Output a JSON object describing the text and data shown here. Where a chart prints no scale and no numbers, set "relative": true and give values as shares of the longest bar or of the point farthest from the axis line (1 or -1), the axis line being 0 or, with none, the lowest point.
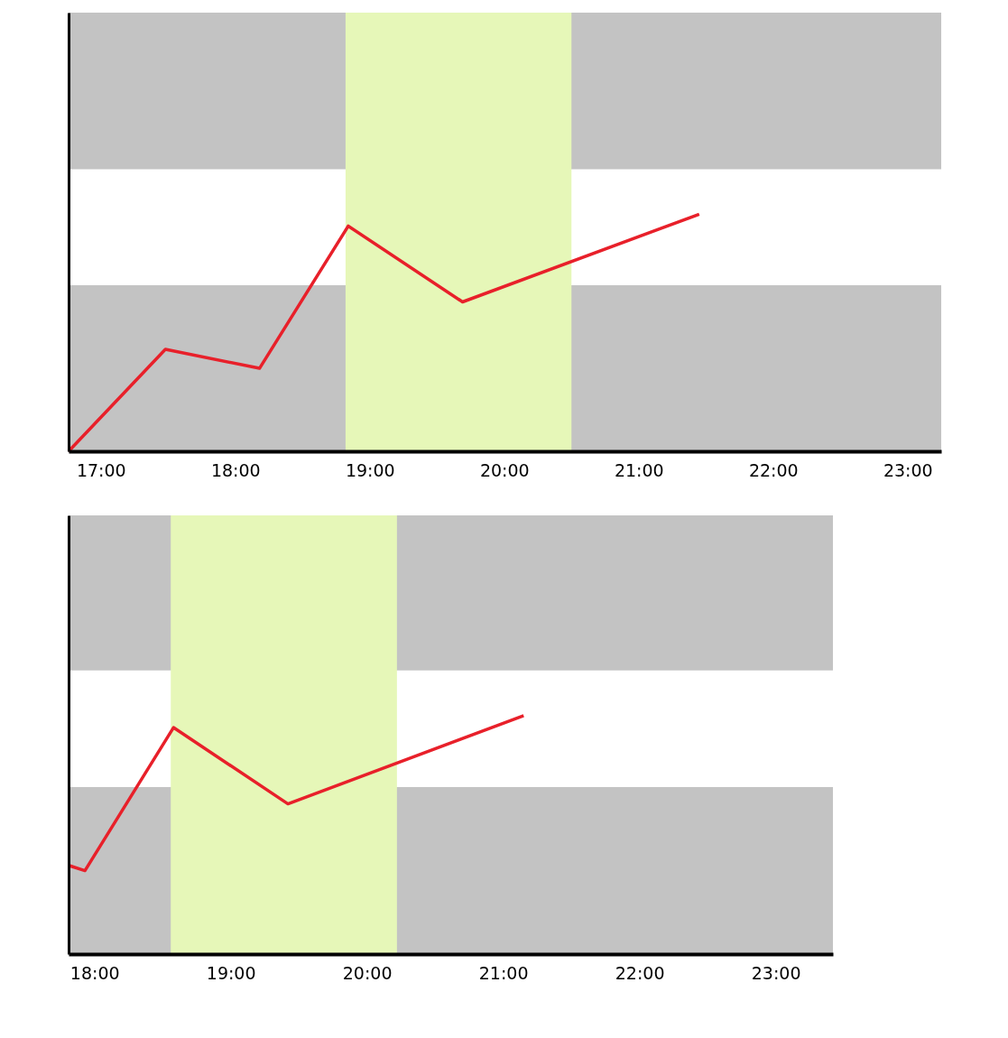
{
  "chart_data": [
    {
      "type": "line",
      "relative": true,
      "x": [
        16.76,
        17.48,
        18.18,
        18.84,
        19.69,
        21.45
      ],
      "series": [
        {
          "color": "#e8202a",
          "values": [
            0,
            0.43,
            0.35,
            0.95,
            0.63,
            1
          ]
        }
      ],
      "xlim": [
        16.76,
        23.25
      ],
      "xticks": [
        {
          "value": 17,
          "label": "17:00"
        },
        {
          "value": 18,
          "label": "18:00"
        },
        {
          "value": 19,
          "label": "19:00"
        },
        {
          "value": 20,
          "label": "20:00"
        },
        {
          "value": 21,
          "label": "21:00"
        },
        {
          "value": 22,
          "label": "22:00"
        },
        {
          "value": 23,
          "label": "23:00"
        }
      ],
      "bands": [
        {
          "axis": "y",
          "from": 0,
          "to": 0.7,
          "color": "#c3c3c3"
        },
        {
          "axis": "y",
          "from": 1.19,
          "to": 1.85,
          "color": "#c3c3c3"
        },
        {
          "axis": "x",
          "from": 18.82,
          "to": 20.5,
          "color": "#e6f7b8"
        }
      ],
      "grid": false,
      "tick_labels": "x",
      "marker": "none",
      "line_style": "solid"
    },
    {
      "type": "line",
      "relative": true,
      "x": [
        17.82,
        17.93,
        18.58,
        19.42,
        21.15
      ],
      "series": [
        {
          "color": "#e8202a",
          "values": [
            0.37,
            0.35,
            0.95,
            0.63,
            1
          ]
        }
      ],
      "xlim": [
        17.81,
        23.42
      ],
      "xticks": [
        {
          "value": 18,
          "label": "18:00"
        },
        {
          "value": 19,
          "label": "19:00"
        },
        {
          "value": 20,
          "label": "20:00"
        },
        {
          "value": 21,
          "label": "21:00"
        },
        {
          "value": 22,
          "label": "22:00"
        },
        {
          "value": 23,
          "label": "23:00"
        }
      ],
      "bands": [
        {
          "axis": "y",
          "from": 0,
          "to": 0.7,
          "color": "#c3c3c3"
        },
        {
          "axis": "y",
          "from": 1.19,
          "to": 1.84,
          "color": "#c3c3c3"
        },
        {
          "axis": "x",
          "from": 18.56,
          "to": 20.22,
          "color": "#e6f7b8"
        }
      ],
      "grid": false,
      "tick_labels": "x",
      "marker": "none",
      "line_style": "solid"
    }
  ]
}
